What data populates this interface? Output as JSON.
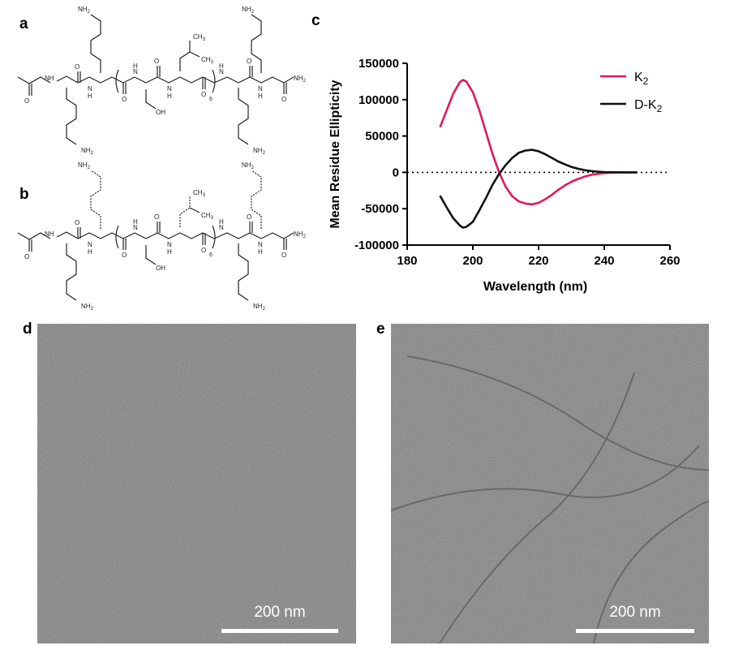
{
  "panels": {
    "a": "a",
    "b": "b",
    "c": "c",
    "d": "d",
    "e": "e"
  },
  "structures": {
    "nh2": "NH",
    "nh2_sub": "2",
    "nh": "NH",
    "n": "N",
    "h": "H",
    "o": "O",
    "oh": "OH",
    "ch3": "CH",
    "ch3_sub": "3",
    "repeat": "6"
  },
  "chart_data": {
    "type": "line",
    "title": "",
    "xlabel": "Wavelength (nm)",
    "ylabel": "Mean Residue Ellipticity",
    "xlim": [
      180,
      260
    ],
    "ylim": [
      -100000,
      150000
    ],
    "xticks": [
      "180",
      "200",
      "220",
      "240",
      "260"
    ],
    "yticks": [
      "150000",
      "100000",
      "50000",
      "0",
      "-50000",
      "-100000"
    ],
    "zero_line": "dotted",
    "legend_position": "top-right",
    "series": [
      {
        "name": "K",
        "name_sub": "2",
        "color": "#e0195a",
        "x": [
          190,
          192,
          194,
          196,
          197,
          198,
          200,
          202,
          204,
          206,
          208,
          210,
          212,
          214,
          216,
          218,
          220,
          222,
          224,
          226,
          228,
          230,
          232,
          234,
          236,
          238,
          240,
          242,
          244,
          246,
          248,
          250
        ],
        "y": [
          62000,
          85000,
          108000,
          124000,
          127000,
          125000,
          110000,
          85000,
          55000,
          25000,
          0,
          -20000,
          -33000,
          -40000,
          -43000,
          -44000,
          -42000,
          -37000,
          -31000,
          -24000,
          -18000,
          -13000,
          -9000,
          -6000,
          -3500,
          -2000,
          -1000,
          -500,
          -200,
          -100,
          0,
          0
        ]
      },
      {
        "name": "D-K",
        "name_sub": "2",
        "color": "#111111",
        "x": [
          190,
          192,
          194,
          196,
          197,
          198,
          200,
          202,
          204,
          206,
          208,
          210,
          212,
          214,
          216,
          218,
          220,
          222,
          224,
          226,
          228,
          230,
          232,
          234,
          236,
          238,
          240,
          242,
          244,
          246,
          248,
          250
        ],
        "y": [
          -32000,
          -48000,
          -63000,
          -73000,
          -76000,
          -75000,
          -68000,
          -52000,
          -35000,
          -17000,
          -2000,
          10000,
          20000,
          27000,
          30000,
          31000,
          29000,
          25000,
          20000,
          15000,
          11000,
          7500,
          5000,
          3000,
          1800,
          1000,
          500,
          200,
          100,
          0,
          0,
          0
        ]
      }
    ]
  },
  "micrographs": {
    "d_scale_label": "200 nm",
    "e_scale_label": "200 nm",
    "tone": "#7d7d7d"
  }
}
